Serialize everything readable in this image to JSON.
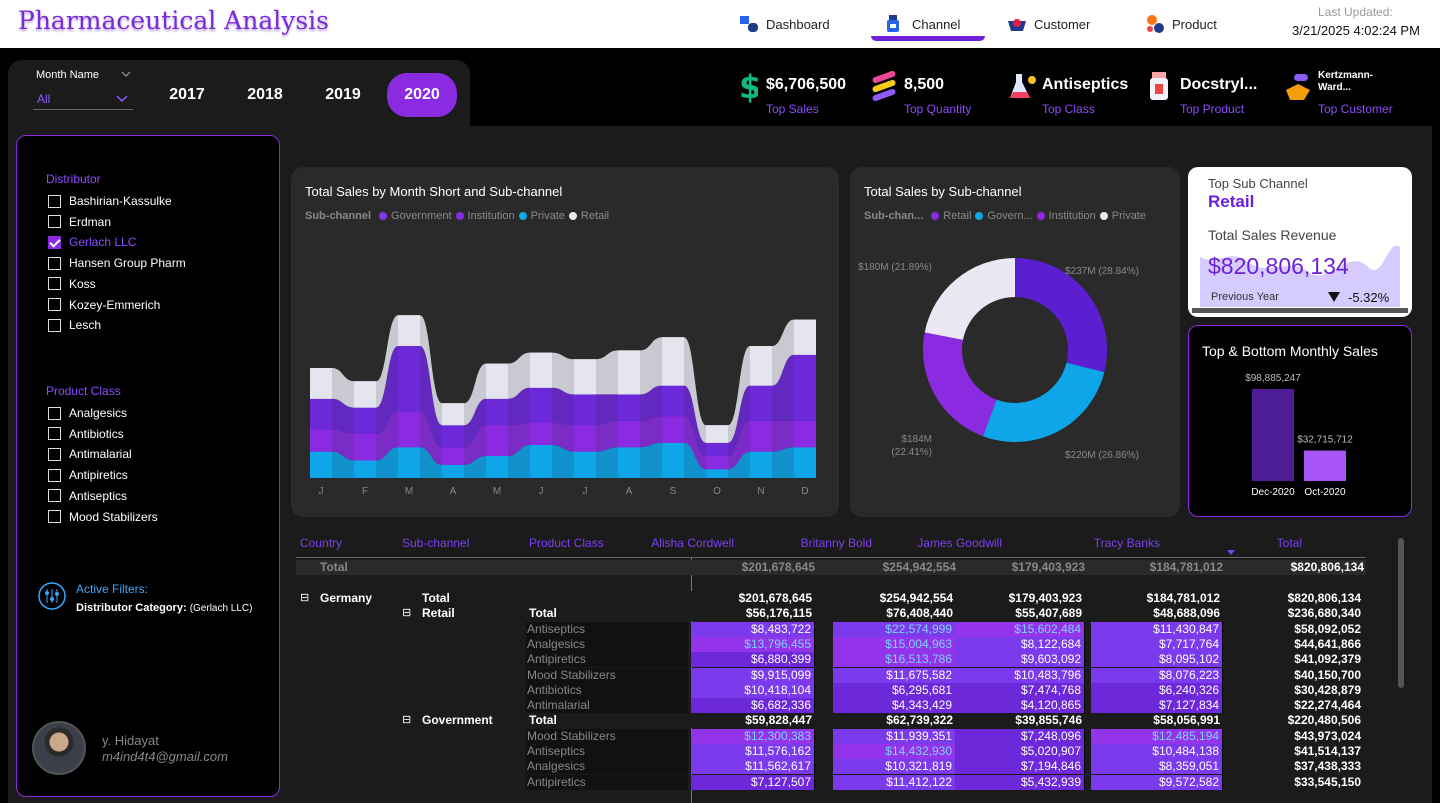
{
  "app": {
    "title": "Pharmaceutical Analysis",
    "last_updated_label": "Last Updated:",
    "last_updated_value": "3/21/2025 4:02:24 PM"
  },
  "nav": [
    {
      "label": "Dashboard",
      "icon": "dashboard-icon"
    },
    {
      "label": "Channel",
      "icon": "channel-icon",
      "active": true
    },
    {
      "label": "Customer",
      "icon": "customer-icon"
    },
    {
      "label": "Product",
      "icon": "product-icon"
    }
  ],
  "filters": {
    "month_label": "Month Name",
    "month_value": "All",
    "years": [
      "2017",
      "2018",
      "2019",
      "2020"
    ],
    "active_year": "2020"
  },
  "kpis": [
    {
      "value": "$6,706,500",
      "label": "Top Sales",
      "icon": "dollar-icon"
    },
    {
      "value": "8,500",
      "label": "Top Quantity",
      "icon": "pills-icon"
    },
    {
      "value": "Antiseptics",
      "label": "Top Class",
      "icon": "flask-icon"
    },
    {
      "value": "Docstryl...",
      "label": "Top Product",
      "icon": "medicine-bottle-icon"
    },
    {
      "value": "Kertzmann-Ward...",
      "label": "Top Customer",
      "icon": "hand-pill-icon"
    }
  ],
  "slicer": {
    "distributor_title": "Distributor",
    "distributors": [
      {
        "label": "Bashirian-Kassulke",
        "checked": false
      },
      {
        "label": "Erdman",
        "checked": false
      },
      {
        "label": "Gerlach LLC",
        "checked": true
      },
      {
        "label": "Hansen Group Pharm",
        "checked": false
      },
      {
        "label": "Koss",
        "checked": false
      },
      {
        "label": "Kozey-Emmerich",
        "checked": false
      },
      {
        "label": "Lesch",
        "checked": false
      }
    ],
    "class_title": "Product Class",
    "classes": [
      {
        "label": "Analgesics",
        "checked": false
      },
      {
        "label": "Antibiotics",
        "checked": false
      },
      {
        "label": "Antimalarial",
        "checked": false
      },
      {
        "label": "Antipiretics",
        "checked": false
      },
      {
        "label": "Antiseptics",
        "checked": false
      },
      {
        "label": "Mood Stabilizers",
        "checked": false
      }
    ],
    "active_filters_label": "Active Filters:",
    "active_filters_key": "Distributor Category:",
    "active_filters_value": "(Gerlach LLC)"
  },
  "user": {
    "name": "y. Hidayat",
    "email": "m4ind4t4@gmail.com"
  },
  "ribbon": {
    "title": "Total Sales by Month Short and Sub-channel",
    "legend_title": "Sub-channel",
    "legend": [
      {
        "name": "Government",
        "color": "#7c3aed"
      },
      {
        "name": "Institution",
        "color": "#8a2be2"
      },
      {
        "name": "Private",
        "color": "#0ea5e9"
      },
      {
        "name": "Retail",
        "color": "#e8e8f0"
      }
    ]
  },
  "chart_data": [
    {
      "type": "area",
      "title": "Total Sales by Month Short and Sub-channel",
      "categories": [
        "J",
        "F",
        "M",
        "A",
        "M",
        "J",
        "J",
        "A",
        "S",
        "O",
        "N",
        "D"
      ],
      "series": [
        {
          "name": "Private",
          "values": [
            12,
            8,
            14,
            6,
            10,
            15,
            12,
            14,
            16,
            4,
            12,
            14
          ]
        },
        {
          "name": "Institution",
          "values": [
            10,
            12,
            16,
            8,
            14,
            10,
            12,
            12,
            12,
            6,
            14,
            12
          ]
        },
        {
          "name": "Government",
          "values": [
            14,
            12,
            30,
            10,
            12,
            16,
            14,
            12,
            14,
            6,
            16,
            30
          ]
        },
        {
          "name": "Retail",
          "values": [
            14,
            12,
            14,
            10,
            16,
            16,
            16,
            20,
            22,
            8,
            18,
            16
          ]
        }
      ]
    },
    {
      "type": "pie",
      "title": "Total Sales by Sub-channel",
      "legend_title": "Sub-chan...",
      "legend": [
        "Retail",
        "Govern...",
        "Institution",
        "Private"
      ],
      "slices": [
        {
          "name": "Retail",
          "value": 237,
          "label": "$237M (28.84%)",
          "color": "#5b1fd1"
        },
        {
          "name": "Government",
          "value": 220,
          "label": "$220M (26.86%)",
          "color": "#0ea5e9"
        },
        {
          "name": "Institution",
          "value": 184,
          "label": "$184M (22.41%)",
          "color": "#8a2be2"
        },
        {
          "name": "Private",
          "value": 180,
          "label": "$180M (21.89%)",
          "color": "#ebe7f5"
        }
      ]
    },
    {
      "type": "bar",
      "title": "Top & Bottom Monthly Sales",
      "categories": [
        "Dec-2020",
        "Oct-2020"
      ],
      "values": [
        98885247,
        32715712
      ],
      "labels": [
        "$98,885,247",
        "$32,715,712"
      ]
    }
  ],
  "donut": {
    "title": "Total Sales by Sub-channel",
    "legend_title": "Sub-chan...",
    "legend": [
      {
        "name": "Retail",
        "color": "#8a2be2"
      },
      {
        "name": "Govern...",
        "color": "#0ea5e9"
      },
      {
        "name": "Institution",
        "color": "#8a2be2"
      },
      {
        "name": "Private",
        "color": "#ebe7f5"
      }
    ]
  },
  "top_sub": {
    "title": "Top Sub Channel",
    "value": "Retail",
    "revenue_label": "Total Sales Revenue",
    "revenue_value": "$820,806,134",
    "prev_label": "Previous Year",
    "change": "-5.32%"
  },
  "top_bottom": {
    "title": "Top & Bottom Monthly Sales"
  },
  "matrix": {
    "headers": [
      "Country",
      "Sub-channel",
      "Product Class",
      "Alisha Cordwell",
      "Britanny Bold",
      "James Goodwill",
      "Tracy Banks",
      "Total"
    ],
    "total_row": {
      "label": "Total",
      "values": [
        "$201,678,645",
        "$254,942,554",
        "$179,403,923",
        "$184,781,012",
        "$820,806,134"
      ]
    },
    "rows": [
      {
        "c0": "Germany",
        "c1": "Total",
        "c2": "",
        "v": [
          "$201,678,645",
          "$254,942,554",
          "$179,403,923",
          "$184,781,012",
          "$820,806,134"
        ],
        "kind": "total"
      },
      {
        "c0": "",
        "c1": "Retail",
        "c2": "Total",
        "v": [
          "$56,176,115",
          "$76,408,440",
          "$55,407,689",
          "$48,688,096",
          "$236,680,340"
        ],
        "kind": "sub"
      },
      {
        "c0": "",
        "c1": "",
        "c2": "Antiseptics",
        "v": [
          "$8,483,722",
          "$22,574,999",
          "$15,602,484",
          "$11,430,847",
          "$58,092,052"
        ],
        "kind": "leaf",
        "h": [
          2,
          4,
          3,
          2
        ]
      },
      {
        "c0": "",
        "c1": "",
        "c2": "Analgesics",
        "v": [
          "$13,796,455",
          "$15,004,963",
          "$8,122,684",
          "$7,717,764",
          "$44,641,866"
        ],
        "kind": "leaf",
        "h": [
          3,
          3,
          2,
          2
        ]
      },
      {
        "c0": "",
        "c1": "",
        "c2": "Antipiretics",
        "v": [
          "$6,880,399",
          "$16,513,786",
          "$9,603,092",
          "$8,095,102",
          "$41,092,379"
        ],
        "kind": "leaf",
        "h": [
          1,
          3,
          2,
          2
        ]
      },
      {
        "c0": "",
        "c1": "",
        "c2": "Mood Stabilizers",
        "v": [
          "$9,915,099",
          "$11,675,582",
          "$10,483,796",
          "$8,076,223",
          "$40,150,700"
        ],
        "kind": "leaf",
        "h": [
          2,
          2,
          2,
          2
        ]
      },
      {
        "c0": "",
        "c1": "",
        "c2": "Antibiotics",
        "v": [
          "$10,418,104",
          "$6,295,681",
          "$7,474,768",
          "$6,240,326",
          "$30,428,879"
        ],
        "kind": "leaf",
        "h": [
          2,
          1,
          1,
          1
        ]
      },
      {
        "c0": "",
        "c1": "",
        "c2": "Antimalarial",
        "v": [
          "$6,682,336",
          "$4,343,429",
          "$4,120,865",
          "$7,127,834",
          "$22,274,464"
        ],
        "kind": "leaf",
        "h": [
          1,
          1,
          1,
          1
        ]
      },
      {
        "c0": "",
        "c1": "Government",
        "c2": "Total",
        "v": [
          "$59,828,447",
          "$62,739,322",
          "$39,855,746",
          "$58,056,991",
          "$220,480,506"
        ],
        "kind": "sub"
      },
      {
        "c0": "",
        "c1": "",
        "c2": "Mood Stabilizers",
        "v": [
          "$12,300,383",
          "$11,939,351",
          "$7,248,096",
          "$12,485,194",
          "$43,973,024"
        ],
        "kind": "leaf",
        "h": [
          3,
          2,
          1,
          3
        ]
      },
      {
        "c0": "",
        "c1": "",
        "c2": "Antiseptics",
        "v": [
          "$11,576,162",
          "$14,432,930",
          "$5,020,907",
          "$10,484,138",
          "$41,514,137"
        ],
        "kind": "leaf",
        "h": [
          2,
          3,
          1,
          2
        ]
      },
      {
        "c0": "",
        "c1": "",
        "c2": "Analgesics",
        "v": [
          "$11,562,617",
          "$10,321,819",
          "$7,194,846",
          "$8,359,051",
          "$37,438,333"
        ],
        "kind": "leaf",
        "h": [
          2,
          2,
          1,
          2
        ]
      },
      {
        "c0": "",
        "c1": "",
        "c2": "Antipiretics",
        "v": [
          "$7,127,507",
          "$11,412,122",
          "$5,432,939",
          "$9,572,582",
          "$33,545,150"
        ],
        "kind": "leaf",
        "h": [
          1,
          2,
          1,
          2
        ]
      }
    ]
  }
}
